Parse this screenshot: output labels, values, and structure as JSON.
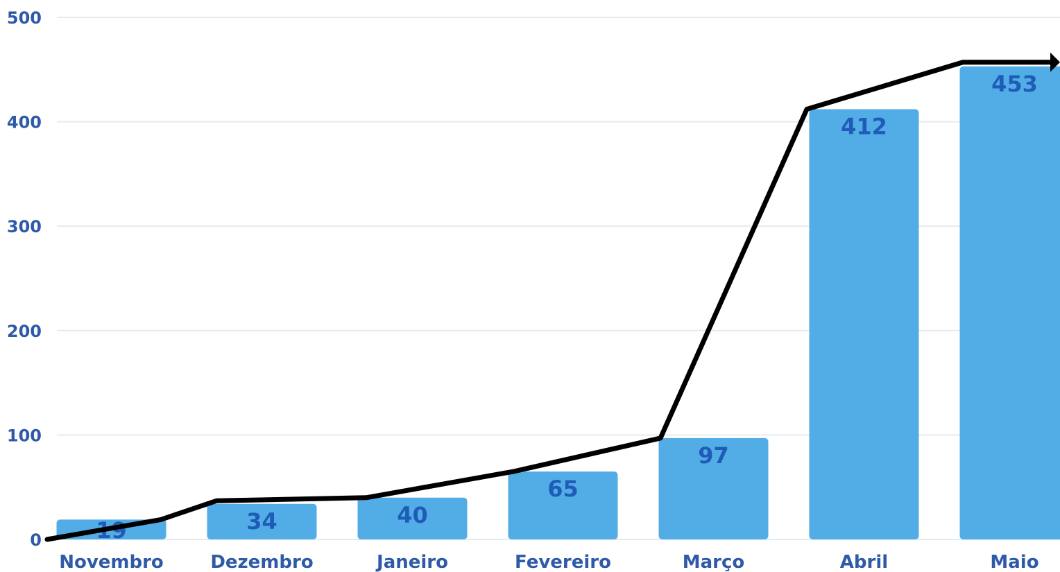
{
  "chart_data": {
    "type": "bar",
    "categories": [
      "Novembro",
      "Dezembro",
      "Janeiro",
      "Fevereiro",
      "Março",
      "Abril",
      "Maio"
    ],
    "values": [
      19,
      34,
      40,
      65,
      97,
      412,
      453
    ],
    "data_labels": [
      "19",
      "34",
      "40",
      "65",
      "97",
      "412",
      "453"
    ],
    "overlay_line": {
      "type": "line",
      "values": [
        0,
        19,
        37,
        40,
        65,
        97,
        412,
        457,
        457
      ],
      "arrow_end": true
    },
    "yticks": [
      "0",
      "100",
      "200",
      "300",
      "400",
      "500"
    ],
    "ytick_values": [
      0,
      100,
      200,
      300,
      400,
      500
    ],
    "ylim": [
      0,
      500
    ],
    "title": "",
    "xlabel": "",
    "ylabel": "",
    "grid": true,
    "legend": "none"
  },
  "colors": {
    "bar": "#52ade6",
    "data_label": "#1f5cb8",
    "tick_label": "#2e5aa7",
    "grid": "#e6eaf0",
    "line": "#000000"
  }
}
